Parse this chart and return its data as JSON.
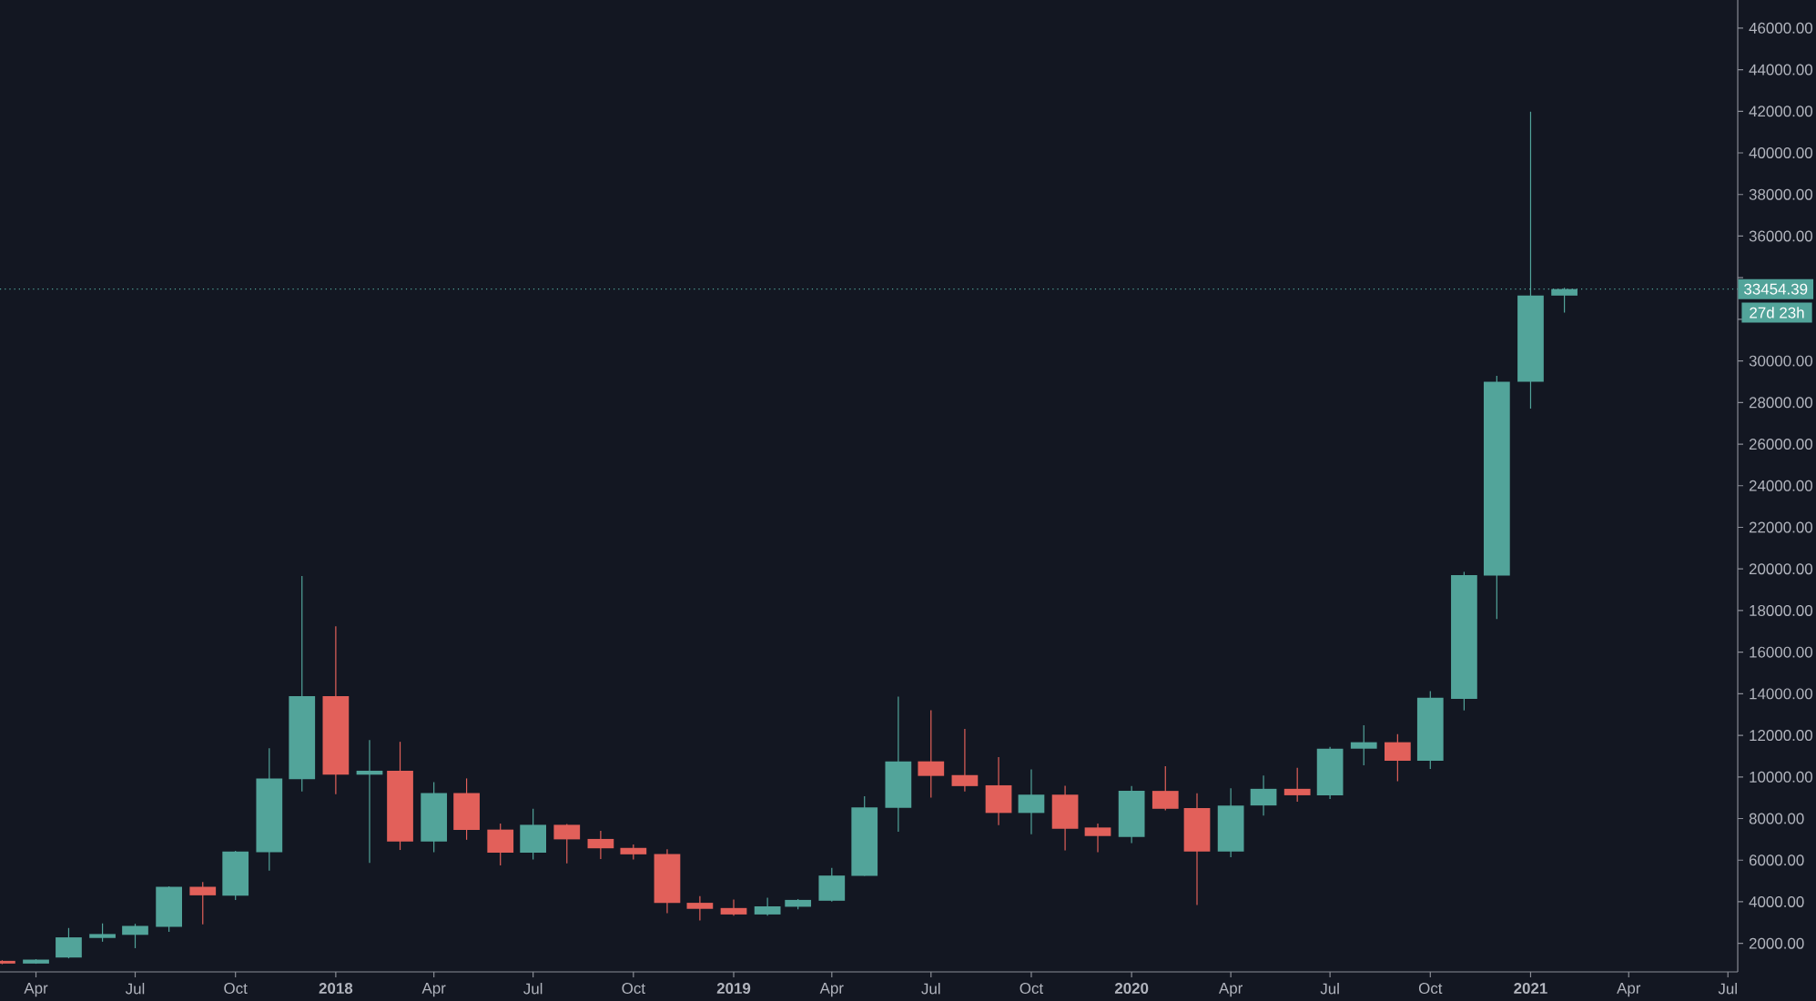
{
  "chart_data": {
    "type": "candlestick",
    "x": [
      "2017-03",
      "2017-04",
      "2017-05",
      "2017-06",
      "2017-07",
      "2017-08",
      "2017-09",
      "2017-10",
      "2017-11",
      "2017-12",
      "2018-01",
      "2018-02",
      "2018-03",
      "2018-04",
      "2018-05",
      "2018-06",
      "2018-07",
      "2018-08",
      "2018-09",
      "2018-10",
      "2018-11",
      "2018-12",
      "2019-01",
      "2019-02",
      "2019-03",
      "2019-04",
      "2019-05",
      "2019-06",
      "2019-07",
      "2019-08",
      "2019-09",
      "2019-10",
      "2019-11",
      "2019-12",
      "2020-01",
      "2020-02",
      "2020-03",
      "2020-04",
      "2020-05",
      "2020-06",
      "2020-07",
      "2020-08",
      "2020-09",
      "2020-10",
      "2020-11",
      "2020-12",
      "2021-01",
      "2021-02"
    ],
    "ohlc": [
      [
        1160,
        1190,
        1000,
        1030
      ],
      [
        1030,
        1240,
        1020,
        1220
      ],
      [
        1320,
        2740,
        1280,
        2290
      ],
      [
        2260,
        2960,
        2080,
        2450
      ],
      [
        2410,
        2940,
        1770,
        2840
      ],
      [
        2800,
        4740,
        2550,
        4720
      ],
      [
        4720,
        4950,
        2920,
        4310
      ],
      [
        4290,
        6450,
        4090,
        6420
      ],
      [
        6380,
        11380,
        5500,
        9930
      ],
      [
        9890,
        19660,
        9300,
        13880
      ],
      [
        13880,
        17240,
        9170,
        10110
      ],
      [
        10110,
        11770,
        5870,
        10300
      ],
      [
        10300,
        11690,
        6490,
        6900
      ],
      [
        6900,
        9750,
        6380,
        9230
      ],
      [
        9230,
        9930,
        6980,
        7450
      ],
      [
        7470,
        7760,
        5750,
        6360
      ],
      [
        6360,
        8470,
        6030,
        7700
      ],
      [
        7700,
        7740,
        5850,
        7000
      ],
      [
        7020,
        7410,
        6060,
        6570
      ],
      [
        6590,
        6750,
        6030,
        6280
      ],
      [
        6300,
        6530,
        3450,
        3940
      ],
      [
        3950,
        4270,
        3100,
        3660
      ],
      [
        3700,
        4110,
        3330,
        3390
      ],
      [
        3390,
        4190,
        3330,
        3780
      ],
      [
        3760,
        4130,
        3640,
        4090
      ],
      [
        4050,
        5630,
        4010,
        5260
      ],
      [
        5240,
        9070,
        5240,
        8540
      ],
      [
        8510,
        13860,
        7370,
        10750
      ],
      [
        10750,
        13210,
        9010,
        10050
      ],
      [
        10090,
        12310,
        9300,
        9560
      ],
      [
        9600,
        10950,
        7680,
        8270
      ],
      [
        8270,
        10360,
        7250,
        9150
      ],
      [
        9150,
        9580,
        6470,
        7510
      ],
      [
        7570,
        7760,
        6380,
        7160
      ],
      [
        7120,
        9560,
        6820,
        9330
      ],
      [
        9330,
        10520,
        8390,
        8470
      ],
      [
        8500,
        9210,
        3840,
        6410
      ],
      [
        6410,
        9460,
        6140,
        8630
      ],
      [
        8630,
        10070,
        8140,
        9430
      ],
      [
        9430,
        10440,
        8810,
        9120
      ],
      [
        9120,
        11450,
        8940,
        11360
      ],
      [
        11360,
        12490,
        10560,
        11670
      ],
      [
        11670,
        12060,
        9790,
        10780
      ],
      [
        10780,
        14120,
        10380,
        13810
      ],
      [
        13750,
        19860,
        13200,
        19700
      ],
      [
        19680,
        29280,
        17590,
        29000
      ],
      [
        29000,
        41980,
        27710,
        33140
      ],
      [
        33140,
        33510,
        32320,
        33454.39
      ]
    ],
    "colors": [
      "#e2605a",
      "#52a49a",
      "#52a49a",
      "#52a49a",
      "#52a49a",
      "#52a49a",
      "#e2605a",
      "#52a49a",
      "#52a49a",
      "#52a49a",
      "#e2605a",
      "#52a49a",
      "#e2605a",
      "#52a49a",
      "#e2605a",
      "#e2605a",
      "#52a49a",
      "#e2605a",
      "#e2605a",
      "#e2605a",
      "#e2605a",
      "#e2605a",
      "#e2605a",
      "#52a49a",
      "#52a49a",
      "#52a49a",
      "#52a49a",
      "#52a49a",
      "#e2605a",
      "#e2605a",
      "#e2605a",
      "#52a49a",
      "#e2605a",
      "#e2605a",
      "#52a49a",
      "#e2605a",
      "#e2605a",
      "#52a49a",
      "#52a49a",
      "#e2605a",
      "#52a49a",
      "#52a49a",
      "#e2605a",
      "#52a49a",
      "#52a49a",
      "#52a49a",
      "#52a49a",
      "#52a49a"
    ],
    "xlim": [
      "2017-02-27",
      "2021-07-10"
    ],
    "xticks": [
      {
        "value": "2017-04",
        "label": "Apr"
      },
      {
        "value": "2017-07",
        "label": "Jul"
      },
      {
        "value": "2017-10",
        "label": "Oct"
      },
      {
        "value": "2018-01",
        "label": "2018"
      },
      {
        "value": "2018-04",
        "label": "Apr"
      },
      {
        "value": "2018-07",
        "label": "Jul"
      },
      {
        "value": "2018-10",
        "label": "Oct"
      },
      {
        "value": "2019-01",
        "label": "2019"
      },
      {
        "value": "2019-04",
        "label": "Apr"
      },
      {
        "value": "2019-07",
        "label": "Jul"
      },
      {
        "value": "2019-10",
        "label": "Oct"
      },
      {
        "value": "2020-01",
        "label": "2020"
      },
      {
        "value": "2020-04",
        "label": "Apr"
      },
      {
        "value": "2020-07",
        "label": "Jul"
      },
      {
        "value": "2020-10",
        "label": "Oct"
      },
      {
        "value": "2021-01",
        "label": "2021"
      },
      {
        "value": "2021-04",
        "label": "Apr"
      },
      {
        "value": "2021-07",
        "label": "Jul"
      }
    ],
    "ylim": [
      630,
      47350
    ],
    "yticks": [
      {
        "value": 2000,
        "label": "2000.00"
      },
      {
        "value": 4000,
        "label": "4000.00"
      },
      {
        "value": 6000,
        "label": "6000.00"
      },
      {
        "value": 8000,
        "label": "8000.00"
      },
      {
        "value": 10000,
        "label": "10000.00"
      },
      {
        "value": 12000,
        "label": "12000.00"
      },
      {
        "value": 14000,
        "label": "14000.00"
      },
      {
        "value": 16000,
        "label": "16000.00"
      },
      {
        "value": 18000,
        "label": "18000.00"
      },
      {
        "value": 20000,
        "label": "20000.00"
      },
      {
        "value": 22000,
        "label": "22000.00"
      },
      {
        "value": 24000,
        "label": "24000.00"
      },
      {
        "value": 26000,
        "label": "26000.00"
      },
      {
        "value": 28000,
        "label": "28000.00"
      },
      {
        "value": 30000,
        "label": "30000.00"
      },
      {
        "value": 32000,
        "label": null
      },
      {
        "value": 34000,
        "label": null
      },
      {
        "value": 36000,
        "label": "36000.00"
      },
      {
        "value": 38000,
        "label": "38000.00"
      },
      {
        "value": 40000,
        "label": "40000.00"
      },
      {
        "value": 42000,
        "label": "42000.00"
      },
      {
        "value": 44000,
        "label": "44000.00"
      },
      {
        "value": 46000,
        "label": "46000.00"
      }
    ],
    "ref_lines": [
      {
        "axis": "y",
        "value": 33454.39,
        "label": "33454.39",
        "color": "#52a49a",
        "line_style": "dotted"
      }
    ],
    "annotations": [
      "27d 23h"
    ]
  }
}
